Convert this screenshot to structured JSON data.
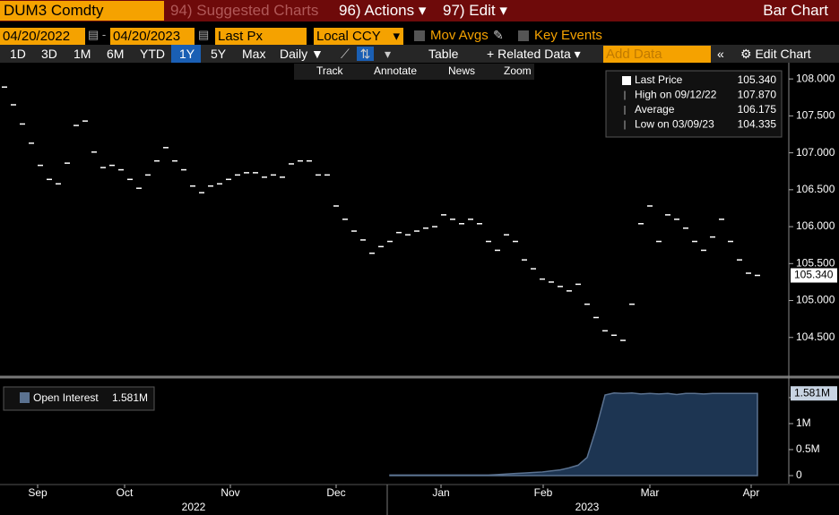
{
  "header": {
    "ticker": "DUM3 Comdty",
    "menus": [
      "94) Suggested Charts",
      "96) Actions",
      "97) Edit"
    ],
    "title": "Bar Chart"
  },
  "controls": {
    "start_date": "04/20/2022",
    "end_date": "04/20/2023",
    "field": "Last Px",
    "currency": "Local CCY",
    "checkboxes": [
      "Mov Avgs",
      "Key Events"
    ],
    "periods": [
      "1D",
      "3D",
      "1M",
      "6M",
      "YTD",
      "1Y",
      "5Y",
      "Max"
    ],
    "frequency": "Daily",
    "buttons": [
      "Table",
      "Related Data"
    ],
    "add_data": "Add Data",
    "edit": "Edit Chart",
    "tools": [
      "Track",
      "Annotate",
      "News",
      "Zoom"
    ]
  },
  "chart_data": [
    {
      "type": "tick",
      "xlim": [
        -0.5,
        87.5
      ],
      "ylim": [
        104.0,
        108.22
      ],
      "xticks": [
        {
          "value": 3.7,
          "label": "Sep"
        },
        {
          "value": 13.4,
          "label": "Oct"
        },
        {
          "value": 25.2,
          "label": "Nov"
        },
        {
          "value": 37,
          "label": "Dec"
        },
        {
          "value": 48.7,
          "label": "Jan"
        },
        {
          "value": 60.1,
          "label": "Feb"
        },
        {
          "value": 72,
          "label": "Mar"
        },
        {
          "value": 83.3,
          "label": "Apr"
        }
      ],
      "years": [
        {
          "value": 21.1,
          "label": "2022"
        },
        {
          "value": 65,
          "label": "2023"
        }
      ],
      "yticks": [
        {
          "value": 104.5,
          "label": "104.500"
        },
        {
          "value": 105,
          "label": "105.000"
        },
        {
          "value": 105.5,
          "label": "105.500"
        },
        {
          "value": 106,
          "label": "106.000"
        },
        {
          "value": 106.5,
          "label": "106.500"
        },
        {
          "value": 107,
          "label": "107.000"
        },
        {
          "value": 107.5,
          "label": "107.500"
        },
        {
          "value": 108,
          "label": "108.000"
        }
      ],
      "series": [
        {
          "name": "Last Price",
          "color": "#ffffff",
          "x": [
            0,
            1,
            2,
            3,
            4,
            5,
            6,
            7,
            8,
            9,
            10,
            11,
            12,
            13,
            14,
            15,
            16,
            17,
            18,
            19,
            20,
            21,
            22,
            23,
            24,
            25,
            26,
            27,
            28,
            29,
            30,
            31,
            32,
            33,
            34,
            35,
            36,
            37,
            38,
            39,
            40,
            41,
            42,
            43,
            44,
            45,
            46,
            47,
            48,
            49,
            50,
            51,
            52,
            53,
            54,
            55,
            56,
            57,
            58,
            59,
            60,
            61,
            62,
            63,
            64,
            65,
            66,
            67,
            68,
            69,
            70,
            71,
            72,
            73,
            74,
            75,
            76,
            77,
            78,
            79,
            80,
            81,
            82,
            83,
            84
          ],
          "values": [
            107.89,
            107.65,
            107.39,
            107.13,
            106.83,
            106.64,
            106.58,
            106.86,
            107.37,
            107.43,
            107.01,
            106.8,
            106.83,
            106.77,
            106.64,
            106.52,
            106.7,
            106.89,
            107.07,
            106.89,
            106.77,
            106.55,
            106.46,
            106.55,
            106.58,
            106.64,
            106.7,
            106.73,
            106.73,
            106.67,
            106.7,
            106.67,
            106.85,
            106.89,
            106.89,
            106.7,
            106.7,
            106.28,
            106.1,
            105.94,
            105.82,
            105.64,
            105.73,
            105.8,
            105.92,
            105.89,
            105.94,
            105.98,
            106.0,
            106.16,
            106.1,
            106.04,
            106.1,
            106.04,
            105.8,
            105.68,
            105.89,
            105.8,
            105.55,
            105.43,
            105.29,
            105.25,
            105.19,
            105.13,
            105.22,
            104.95,
            104.77,
            104.59,
            104.53,
            104.46,
            104.95,
            106.04,
            106.28,
            105.8,
            106.16,
            106.1,
            105.98,
            105.8,
            105.68,
            105.86,
            106.1,
            105.8,
            105.55,
            105.37,
            105.34
          ]
        }
      ],
      "last_value": {
        "value": 105.34,
        "label": "105.340"
      },
      "legend": [
        {
          "label": "Last Price",
          "value": 105.34,
          "value_label": "105.340"
        },
        {
          "label": "High on 09/12/22",
          "value": 107.87,
          "value_label": "107.870"
        },
        {
          "label": "Average",
          "value": 106.175,
          "value_label": "106.175"
        },
        {
          "label": "Low on 03/09/23",
          "value": 104.335,
          "value_label": "104.335"
        }
      ]
    },
    {
      "type": "area",
      "xlim": [
        -0.5,
        87.5
      ],
      "ylim": [
        -155000,
        1740000
      ],
      "yticks": [
        {
          "value": 0,
          "label": "0"
        },
        {
          "value": 500000,
          "label": "0.5M"
        },
        {
          "value": 1000000,
          "label": "1M"
        },
        {
          "value": 1500000,
          "label": "1.5M"
        }
      ],
      "series": [
        {
          "name": "Open Interest",
          "color": "#5b7290",
          "x": [
            43,
            44,
            45,
            46,
            47,
            48,
            49,
            50,
            51,
            52,
            53,
            54,
            55,
            56,
            57,
            58,
            59,
            60,
            61,
            62,
            63,
            64,
            65,
            66,
            67,
            68,
            69,
            70,
            71,
            72,
            73,
            74,
            75,
            76,
            77,
            78,
            79,
            80,
            81,
            82,
            83,
            84
          ],
          "values": [
            10000,
            10000,
            10000,
            10000,
            10000,
            10000,
            10000,
            10000,
            10000,
            10000,
            10000,
            10000,
            20000,
            30000,
            40000,
            50000,
            60000,
            70000,
            90000,
            110000,
            150000,
            200000,
            350000,
            900000,
            1550000,
            1590000,
            1580000,
            1590000,
            1570000,
            1580000,
            1570000,
            1580000,
            1560000,
            1580000,
            1580000,
            1570000,
            1580000,
            1580000,
            1580000,
            1580000,
            1580000,
            1581000
          ]
        }
      ],
      "legend_value": {
        "value": 1581000,
        "label": "1.581M"
      }
    }
  ]
}
